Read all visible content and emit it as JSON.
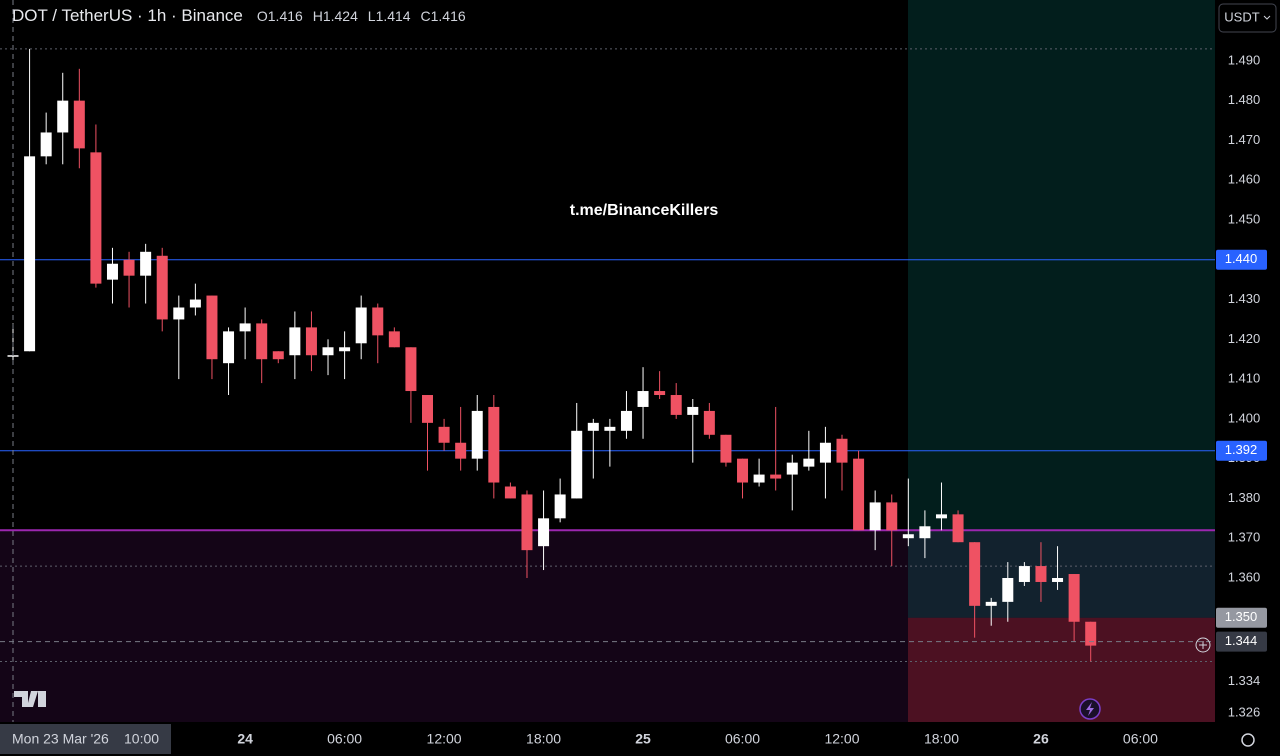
{
  "chart_data": {
    "type": "candlestick",
    "title": "DOT / TetherUS · 1h · Binance",
    "ohlc_labels": [
      "O",
      "H",
      "L",
      "C"
    ],
    "watermark": "t.me/BinanceKillers",
    "currency": "USDT",
    "categories": [
      null,
      null,
      null,
      null,
      null,
      null,
      null,
      null,
      null,
      null,
      null,
      null,
      null,
      null,
      "24",
      null,
      null,
      null,
      null,
      null,
      "06:00",
      null,
      null,
      null,
      null,
      null,
      "12:00",
      null,
      null,
      null,
      null,
      null,
      "18:00",
      null,
      null,
      null,
      null,
      null,
      "25",
      null,
      null,
      null,
      null,
      null,
      "06:00",
      null,
      null,
      null,
      null,
      null,
      "12:00",
      null,
      null,
      null,
      null,
      null,
      "18:00",
      null,
      null,
      null,
      null,
      null,
      "26",
      null,
      null,
      null,
      null,
      null,
      "06:00"
    ],
    "open": [
      1.416,
      1.417,
      1.466,
      1.472,
      1.48,
      1.467,
      1.435,
      1.44,
      1.436,
      1.441,
      1.425,
      1.428,
      1.431,
      1.414,
      1.422,
      1.424,
      1.417,
      1.416,
      1.423,
      1.416,
      1.417,
      1.419,
      1.428,
      1.422,
      1.418,
      1.406,
      1.398,
      1.394,
      1.39,
      1.403,
      1.383,
      1.381,
      1.368,
      1.375,
      1.38,
      1.397,
      1.397,
      1.397,
      1.403,
      1.407,
      1.406,
      1.401,
      1.402,
      1.396,
      1.39,
      1.384,
      1.386,
      1.386,
      1.388,
      1.389,
      1.395,
      1.39,
      1.372,
      1.379,
      1.37,
      1.37,
      1.375,
      1.376,
      1.369,
      1.353,
      1.354,
      1.359,
      1.363,
      1.359,
      1.361,
      1.349,
      null,
      null,
      null
    ],
    "high": [
      1.424,
      1.493,
      1.477,
      1.487,
      1.488,
      1.474,
      1.443,
      1.442,
      1.444,
      1.443,
      1.431,
      1.434,
      1.431,
      1.423,
      1.428,
      1.425,
      1.417,
      1.427,
      1.427,
      1.42,
      1.422,
      1.431,
      1.429,
      1.423,
      1.418,
      1.406,
      1.4,
      1.403,
      1.406,
      1.406,
      1.384,
      1.382,
      1.382,
      1.385,
      1.404,
      1.4,
      1.4,
      1.407,
      1.413,
      1.412,
      1.409,
      1.405,
      1.404,
      1.396,
      1.39,
      1.39,
      1.403,
      1.391,
      1.397,
      1.398,
      1.396,
      1.392,
      1.382,
      1.381,
      1.385,
      1.377,
      1.384,
      1.377,
      1.369,
      1.355,
      1.364,
      1.364,
      1.369,
      1.368,
      1.361,
      1.349,
      null,
      null,
      null
    ],
    "low": [
      1.414,
      1.417,
      1.464,
      1.464,
      1.463,
      1.433,
      1.429,
      1.428,
      1.429,
      1.422,
      1.41,
      1.426,
      1.41,
      1.406,
      1.415,
      1.409,
      1.414,
      1.41,
      1.412,
      1.411,
      1.41,
      1.415,
      1.414,
      1.418,
      1.399,
      1.387,
      1.392,
      1.387,
      1.387,
      1.38,
      1.38,
      1.36,
      1.362,
      1.374,
      1.38,
      1.385,
      1.388,
      1.395,
      1.395,
      1.405,
      1.4,
      1.389,
      1.395,
      1.388,
      1.38,
      1.383,
      1.382,
      1.377,
      1.387,
      1.38,
      1.382,
      1.372,
      1.367,
      1.363,
      1.368,
      1.365,
      1.372,
      1.369,
      1.345,
      1.348,
      1.349,
      1.358,
      1.354,
      1.357,
      1.344,
      1.339,
      null,
      null,
      null
    ],
    "close": [
      1.416,
      1.466,
      1.472,
      1.48,
      1.468,
      1.434,
      1.439,
      1.436,
      1.442,
      1.425,
      1.428,
      1.43,
      1.415,
      1.422,
      1.424,
      1.415,
      1.415,
      1.423,
      1.416,
      1.418,
      1.418,
      1.428,
      1.421,
      1.418,
      1.407,
      1.399,
      1.394,
      1.39,
      1.402,
      1.384,
      1.38,
      1.367,
      1.375,
      1.381,
      1.397,
      1.399,
      1.398,
      1.402,
      1.407,
      1.406,
      1.401,
      1.403,
      1.396,
      1.389,
      1.384,
      1.386,
      1.385,
      1.389,
      1.39,
      1.394,
      1.389,
      1.372,
      1.379,
      1.372,
      1.371,
      1.373,
      1.376,
      1.369,
      1.353,
      1.354,
      1.36,
      1.363,
      1.359,
      1.36,
      1.349,
      1.343,
      null,
      null,
      null
    ],
    "up_color": "#ffffff",
    "down_color": "#ef5263",
    "ylim": [
      1.3238,
      1.5053
    ],
    "yticks": [
      {
        "value": 1.49,
        "label": "1.490"
      },
      {
        "value": 1.48,
        "label": "1.480"
      },
      {
        "value": 1.47,
        "label": "1.470"
      },
      {
        "value": 1.46,
        "label": "1.460"
      },
      {
        "value": 1.45,
        "label": "1.450"
      },
      {
        "value": 1.44,
        "label": "1.440"
      },
      {
        "value": 1.43,
        "label": "1.430"
      },
      {
        "value": 1.42,
        "label": "1.420"
      },
      {
        "value": 1.41,
        "label": "1.410"
      },
      {
        "value": 1.4,
        "label": "1.400"
      },
      {
        "value": 1.39,
        "label": "1.390"
      },
      {
        "value": 1.38,
        "label": "1.380"
      },
      {
        "value": 1.37,
        "label": "1.370"
      },
      {
        "value": 1.36,
        "label": "1.360"
      },
      1.334,
      1.326
    ],
    "grid": false,
    "hlines": [
      {
        "value": 1.44,
        "label": "1.440",
        "color": "#2962ff",
        "style": "solid",
        "tag": true
      },
      {
        "value": 1.392,
        "color": "#2962ff",
        "style": "solid",
        "tag": true
      },
      {
        "value": 1.372,
        "color": "#9c27b0",
        "style": "solid",
        "fill_below": true
      },
      {
        "value": 1.493,
        "color": "#5d606b",
        "style": "dotted"
      },
      {
        "value": 1.363,
        "color": "#5d606b",
        "style": "dotted"
      },
      {
        "value": 1.339,
        "color": "#5d606b",
        "style": "dotted"
      }
    ],
    "position": {
      "entry": {
        "value": 1.35,
        "label": "1.350"
      },
      "profit_color": "rgba(12,150,140,0.2)",
      "loss_color": "rgba(242,54,69,0.25)"
    },
    "crosshair": {
      "value": 1.344,
      "date": "Mon 23 Mar '26",
      "time": "10:00"
    }
  }
}
